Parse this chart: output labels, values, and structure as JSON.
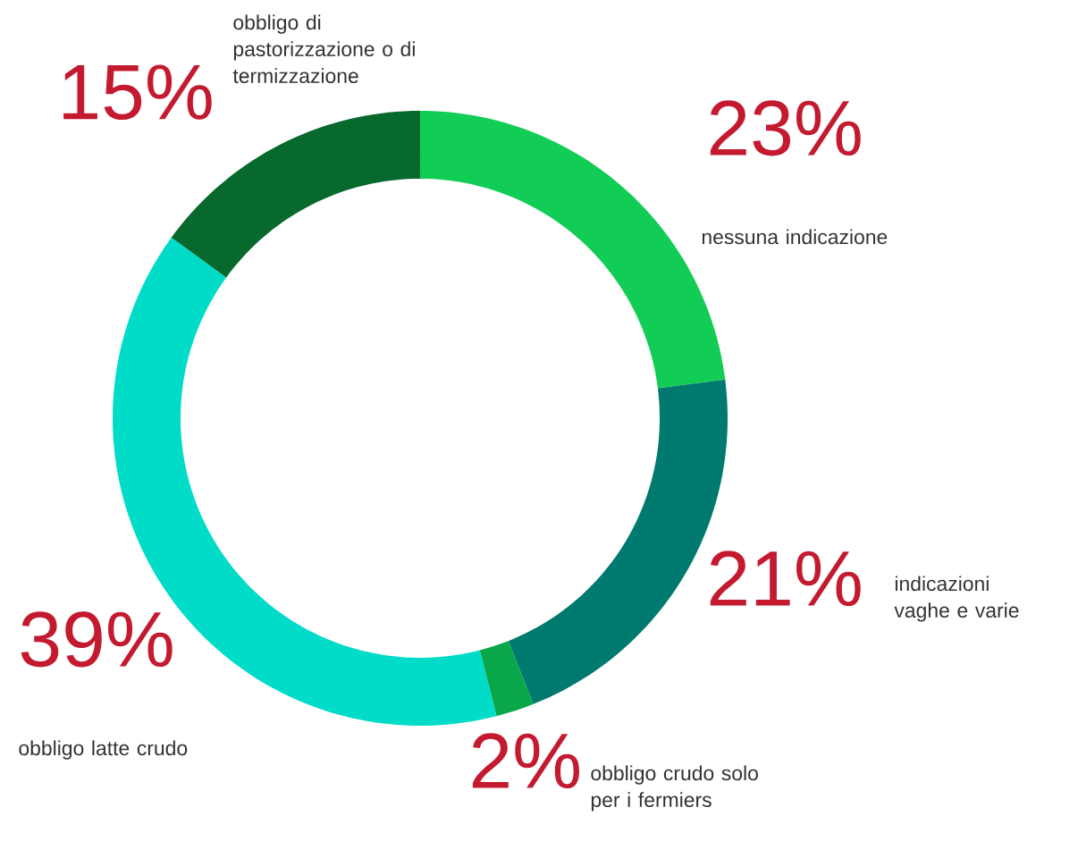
{
  "chart_data": {
    "type": "donut",
    "categories": [
      "nessuna indicazione",
      "indicazioni vaghe e varie",
      "obbligo crudo solo per i fermiers",
      "obbligo latte crudo",
      "obbligo di pastorizzazione o di termizzazione"
    ],
    "values": [
      23,
      21,
      2,
      39,
      15
    ],
    "colors": [
      "#12cd55",
      "#007a6e",
      "#0aa64a",
      "#00dcc8",
      "#08692c"
    ],
    "value_labels": [
      "23%",
      "21%",
      "2%",
      "39%",
      "15%"
    ]
  }
}
